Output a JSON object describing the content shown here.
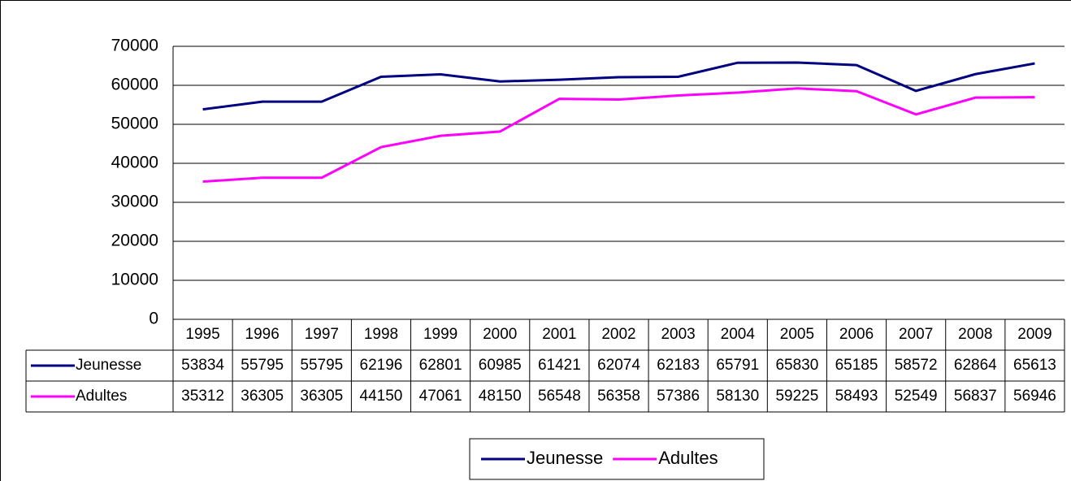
{
  "chart_data": {
    "type": "line",
    "categories": [
      "1995",
      "1996",
      "1997",
      "1998",
      "1999",
      "2000",
      "2001",
      "2002",
      "2003",
      "2004",
      "2005",
      "2006",
      "2007",
      "2008",
      "2009"
    ],
    "series": [
      {
        "name": "Jeunesse",
        "color": "#000080",
        "values": [
          53834,
          55795,
          55795,
          62196,
          62801,
          60985,
          61421,
          62074,
          62183,
          65791,
          65830,
          65185,
          58572,
          62864,
          65613
        ]
      },
      {
        "name": "Adultes",
        "color": "#ff00ff",
        "values": [
          35312,
          36305,
          36305,
          44150,
          47061,
          48150,
          56548,
          56358,
          57386,
          58130,
          59225,
          58493,
          52549,
          56837,
          56946
        ]
      }
    ],
    "ylim": [
      0,
      70000
    ],
    "yticks": [
      0,
      10000,
      20000,
      30000,
      40000,
      50000,
      60000,
      70000
    ],
    "grid": true,
    "legend": "bottom",
    "data_table": true
  }
}
